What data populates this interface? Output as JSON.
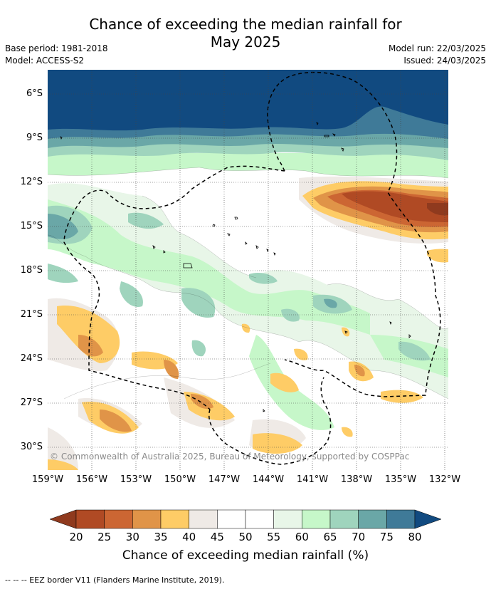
{
  "title": {
    "line1": "Chance of exceeding the median rainfall for",
    "line2": "May 2025"
  },
  "meta": {
    "base_period": "Base period: 1981-2018",
    "model": "Model: ACCESS-S2",
    "model_run": "Model run: 22/03/2025",
    "issued": "Issued: 24/03/2025"
  },
  "map": {
    "y_axis_labels": [
      "6°S",
      "9°S",
      "12°S",
      "15°S",
      "18°S",
      "21°S",
      "24°S",
      "27°S",
      "30°S"
    ],
    "x_axis_labels": [
      "159°W",
      "156°W",
      "153°W",
      "150°W",
      "147°W",
      "144°W",
      "141°W",
      "138°W",
      "135°W",
      "132°W"
    ],
    "copyright": "© Commonwealth of Australia 2025, Bureau of Meteorology, supported by COSPPac"
  },
  "colorbar": {
    "ticks": [
      "20",
      "25",
      "30",
      "35",
      "40",
      "45",
      "50",
      "55",
      "60",
      "65",
      "70",
      "75",
      "80"
    ],
    "colors": [
      "#8f3a1e",
      "#b04a24",
      "#cc6633",
      "#e09448",
      "#fecc66",
      "#efeae6",
      "#ffffff",
      "#ffffff",
      "#e8f6e8",
      "#c6f7c9",
      "#9fd4bd",
      "#6aa7a7",
      "#3f7a98",
      "#114a80"
    ],
    "title": "Chance of exceeding median rainfall (%)"
  },
  "footnote": "-- -- -- EEZ border V11 (Flanders Marine Institute, 2019)."
}
